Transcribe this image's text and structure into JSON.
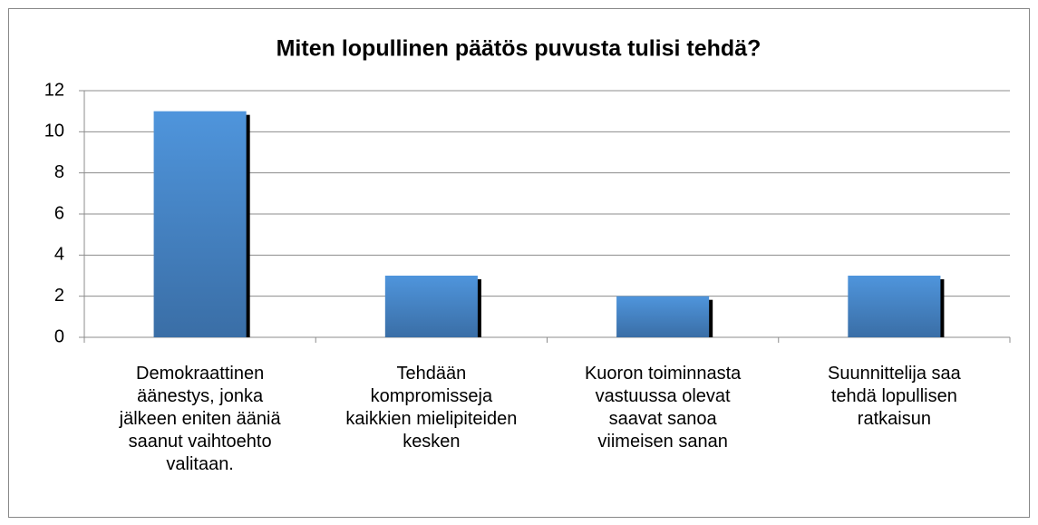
{
  "chart_data": {
    "type": "bar",
    "title": "Miten lopullinen päätös puvusta tulisi tehdä?",
    "categories": [
      "Demokraattinen\näänestys, jonka\njälkeen eniten ääniä\nsaanut vaihtoehto\nvalitaan.",
      "Tehdään\nkompromisseja\nkaikkien mielipiteiden\nkesken",
      "Kuoron toiminnasta\nvastuussa olevat\nsaavat sanoa\nviimeisen sanan",
      "Suunnittelija saa\ntehdä lopullisen\nratkaisun"
    ],
    "values": [
      11,
      3,
      2,
      3
    ],
    "color": "#4a8bd0",
    "ylim": [
      0,
      12
    ],
    "yticks": [
      0,
      2,
      4,
      6,
      8,
      10,
      12
    ],
    "grid": true
  }
}
